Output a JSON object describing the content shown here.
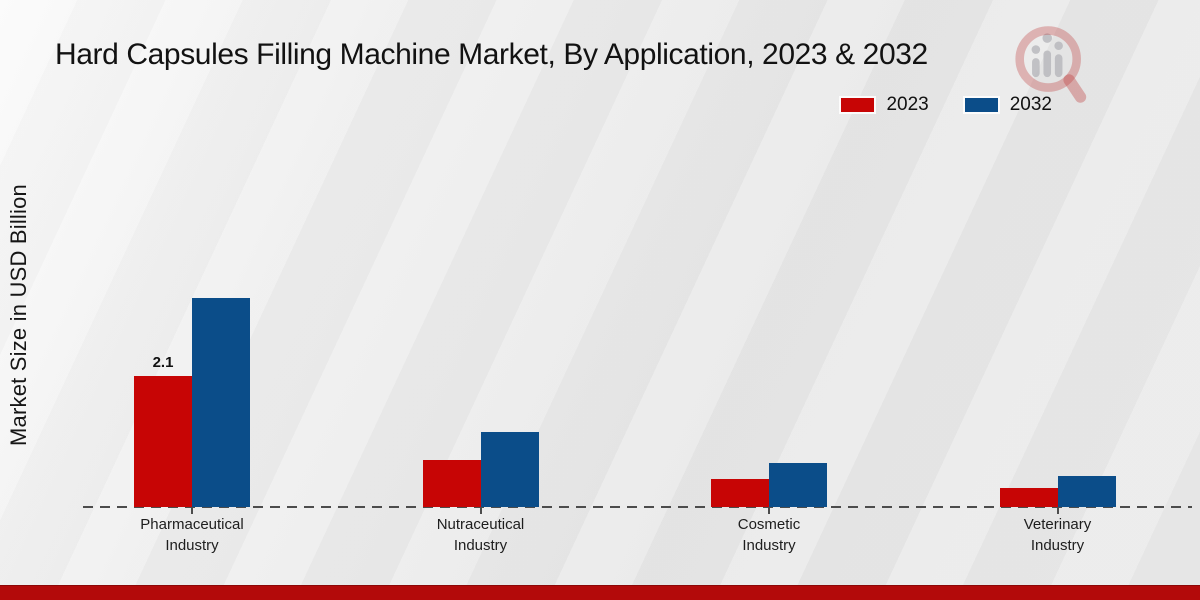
{
  "title": "Hard Capsules Filling Machine Market, By Application, 2023 & 2032",
  "y_axis_label": "Market Size in USD Billion",
  "legend": {
    "items": [
      {
        "label": "2023",
        "color": "#c70505"
      },
      {
        "label": "2032",
        "color": "#0b4d89"
      }
    ]
  },
  "footer": {
    "accent_color": "#b30a0a"
  },
  "watermark_icon": "magnifier-bar-chart-logo",
  "chart_data": {
    "type": "bar",
    "title": "Hard Capsules Filling Machine Market, By Application, 2023 & 2032",
    "categories": [
      "Pharmaceutical Industry",
      "Nutraceutical Industry",
      "Cosmetic Industry",
      "Veterinary Industry"
    ],
    "series": [
      {
        "name": "2023",
        "color": "#c70505",
        "values": [
          2.1,
          0.75,
          0.45,
          0.3
        ]
      },
      {
        "name": "2032",
        "color": "#0b4d89",
        "values": [
          3.35,
          1.2,
          0.7,
          0.5
        ]
      }
    ],
    "data_labels": [
      {
        "series_index": 0,
        "category_index": 0,
        "text": "2.1"
      }
    ],
    "xlabel": "",
    "ylabel": "Market Size in USD Billion",
    "ylim": [
      0,
      4
    ],
    "grid": false,
    "axis_style": "dashed-baseline",
    "legend_position": "top-right"
  }
}
